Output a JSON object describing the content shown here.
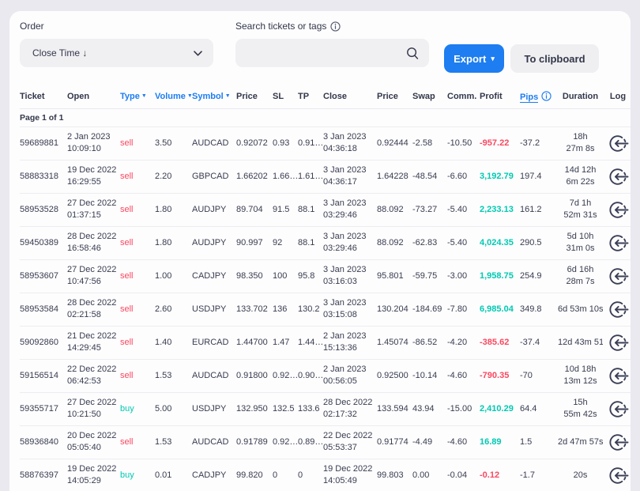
{
  "toolbar": {
    "order_label": "Order",
    "order_value": "Close Time ↓",
    "search_label": "Search tickets or tags",
    "search_value": "",
    "export_label": "Export",
    "export_caret": "▾",
    "clipboard_label": "To clipboard"
  },
  "table": {
    "page_info": "Page 1 of 1",
    "sort_caret": "▼",
    "columns": [
      {
        "key": "ticket",
        "label": "Ticket"
      },
      {
        "key": "open",
        "label": "Open"
      },
      {
        "key": "type",
        "label": "Type",
        "sortable": true
      },
      {
        "key": "volume",
        "label": "Volume",
        "sortable": true
      },
      {
        "key": "symbol",
        "label": "Symbol",
        "sortable": true
      },
      {
        "key": "price",
        "label": "Price"
      },
      {
        "key": "sl",
        "label": "SL"
      },
      {
        "key": "tp",
        "label": "TP"
      },
      {
        "key": "close",
        "label": "Close"
      },
      {
        "key": "close_price",
        "label": "Price"
      },
      {
        "key": "swap",
        "label": "Swap"
      },
      {
        "key": "comm",
        "label": "Comm."
      },
      {
        "key": "profit",
        "label": "Profit"
      },
      {
        "key": "pips",
        "label": "Pips",
        "link": true,
        "info": true
      },
      {
        "key": "duration",
        "label": "Duration"
      },
      {
        "key": "log",
        "label": "Log"
      }
    ],
    "rows": [
      {
        "ticket": "59689881",
        "open": [
          "2 Jan 2023",
          "10:09:10"
        ],
        "type": "sell",
        "volume": "3.50",
        "symbol": "AUDCAD",
        "price": "0.92072",
        "sl": "0.93",
        "tp": "0.91…",
        "close": [
          "3 Jan 2023",
          "04:36:18"
        ],
        "close_price": "0.92444",
        "swap": "-2.58",
        "comm": "-10.50",
        "profit": "-957.22",
        "pips": "-37.2",
        "duration": [
          "18h",
          "27m 8s"
        ]
      },
      {
        "ticket": "58883318",
        "open": [
          "19 Dec 2022",
          "16:29:55"
        ],
        "type": "sell",
        "volume": "2.20",
        "symbol": "GBPCAD",
        "price": "1.66202",
        "sl": "1.66…",
        "tp": "1.61…",
        "close": [
          "3 Jan 2023",
          "04:36:17"
        ],
        "close_price": "1.64228",
        "swap": "-48.54",
        "comm": "-6.60",
        "profit": "3,192.79",
        "pips": "197.4",
        "duration": [
          "14d 12h",
          "6m 22s"
        ]
      },
      {
        "ticket": "58953528",
        "open": [
          "27 Dec 2022",
          "01:37:15"
        ],
        "type": "sell",
        "volume": "1.80",
        "symbol": "AUDJPY",
        "price": "89.704",
        "sl": "91.5",
        "tp": "88.1",
        "close": [
          "3 Jan 2023",
          "03:29:46"
        ],
        "close_price": "88.092",
        "swap": "-73.27",
        "comm": "-5.40",
        "profit": "2,233.13",
        "pips": "161.2",
        "duration": [
          "7d 1h",
          "52m 31s"
        ]
      },
      {
        "ticket": "59450389",
        "open": [
          "28 Dec 2022",
          "16:58:46"
        ],
        "type": "sell",
        "volume": "1.80",
        "symbol": "AUDJPY",
        "price": "90.997",
        "sl": "92",
        "tp": "88.1",
        "close": [
          "3 Jan 2023",
          "03:29:46"
        ],
        "close_price": "88.092",
        "swap": "-62.83",
        "comm": "-5.40",
        "profit": "4,024.35",
        "pips": "290.5",
        "duration": [
          "5d 10h",
          "31m 0s"
        ]
      },
      {
        "ticket": "58953607",
        "open": [
          "27 Dec 2022",
          "10:47:56"
        ],
        "type": "sell",
        "volume": "1.00",
        "symbol": "CADJPY",
        "price": "98.350",
        "sl": "100",
        "tp": "95.8",
        "close": [
          "3 Jan 2023",
          "03:16:03"
        ],
        "close_price": "95.801",
        "swap": "-59.75",
        "comm": "-3.00",
        "profit": "1,958.75",
        "pips": "254.9",
        "duration": [
          "6d 16h",
          "28m 7s"
        ]
      },
      {
        "ticket": "58953584",
        "open": [
          "28 Dec 2022",
          "02:21:58"
        ],
        "type": "sell",
        "volume": "2.60",
        "symbol": "USDJPY",
        "price": "133.702",
        "sl": "136",
        "tp": "130.2",
        "close": [
          "3 Jan 2023",
          "03:15:08"
        ],
        "close_price": "130.204",
        "swap": "-184.69",
        "comm": "-7.80",
        "profit": "6,985.04",
        "pips": "349.8",
        "duration": [
          "6d 53m 10s"
        ]
      },
      {
        "ticket": "59092860",
        "open": [
          "21 Dec 2022",
          "14:29:45"
        ],
        "type": "sell",
        "volume": "1.40",
        "symbol": "EURCAD",
        "price": "1.44700",
        "sl": "1.47",
        "tp": "1.44…",
        "close": [
          "2 Jan 2023",
          "15:13:36"
        ],
        "close_price": "1.45074",
        "swap": "-86.52",
        "comm": "-4.20",
        "profit": "-385.62",
        "pips": "-37.4",
        "duration": [
          "12d 43m 51s"
        ]
      },
      {
        "ticket": "59156514",
        "open": [
          "22 Dec 2022",
          "06:42:53"
        ],
        "type": "sell",
        "volume": "1.53",
        "symbol": "AUDCAD",
        "price": "0.91800",
        "sl": "0.92…",
        "tp": "0.90…",
        "close": [
          "2 Jan 2023",
          "00:56:05"
        ],
        "close_price": "0.92500",
        "swap": "-10.14",
        "comm": "-4.60",
        "profit": "-790.35",
        "pips": "-70",
        "duration": [
          "10d 18h",
          "13m 12s"
        ]
      },
      {
        "ticket": "59355717",
        "open": [
          "27 Dec 2022",
          "10:21:50"
        ],
        "type": "buy",
        "volume": "5.00",
        "symbol": "USDJPY",
        "price": "132.950",
        "sl": "132.5",
        "tp": "133.6",
        "close": [
          "28 Dec 2022",
          "02:17:32"
        ],
        "close_price": "133.594",
        "swap": "43.94",
        "comm": "-15.00",
        "profit": "2,410.29",
        "pips": "64.4",
        "duration": [
          "15h",
          "55m 42s"
        ]
      },
      {
        "ticket": "58936840",
        "open": [
          "20 Dec 2022",
          "05:05:40"
        ],
        "type": "sell",
        "volume": "1.53",
        "symbol": "AUDCAD",
        "price": "0.91789",
        "sl": "0.92…",
        "tp": "0.89…",
        "close": [
          "22 Dec 2022",
          "05:53:37"
        ],
        "close_price": "0.91774",
        "swap": "-4.49",
        "comm": "-4.60",
        "profit": "16.89",
        "pips": "1.5",
        "duration": [
          "2d 47m 57s"
        ]
      },
      {
        "ticket": "58876397",
        "open": [
          "19 Dec 2022",
          "14:05:29"
        ],
        "type": "buy",
        "volume": "0.01",
        "symbol": "CADJPY",
        "price": "99.820",
        "sl": "0",
        "tp": "0",
        "close": [
          "19 Dec 2022",
          "14:05:49"
        ],
        "close_price": "99.803",
        "swap": "0.00",
        "comm": "-0.04",
        "profit": "-0.12",
        "pips": "-1.7",
        "duration": [
          "20s"
        ]
      }
    ]
  },
  "colors": {
    "accent": "#1d7df1",
    "buy": "#00c9b1",
    "sell": "#f9485f",
    "page_bg": "#eae9ef",
    "text": "#33374a"
  }
}
